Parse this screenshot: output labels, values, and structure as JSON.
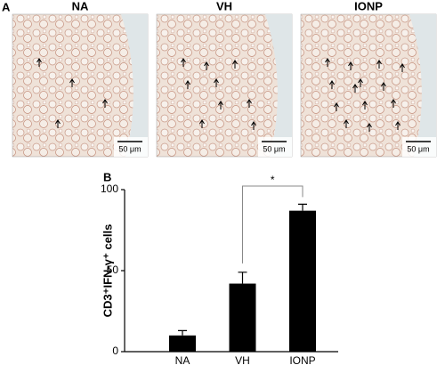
{
  "panel_a": {
    "label": "A",
    "images": [
      {
        "title": "NA",
        "scale_bar": "50 μm"
      },
      {
        "title": "VH",
        "scale_bar": "50 μm"
      },
      {
        "title": "IONP",
        "scale_bar": "50 μm"
      }
    ]
  },
  "chart_data": {
    "type": "bar",
    "panel_label": "B",
    "y_label": "CD3⁺IFN-γ⁺ cells",
    "categories": [
      "NA",
      "VH",
      "IONP"
    ],
    "values": [
      10,
      42,
      87
    ],
    "errors": [
      3,
      7,
      4
    ],
    "color": "#000000",
    "ylim": [
      0,
      100
    ],
    "yticks": [
      0,
      50,
      100
    ],
    "annotation": "*"
  }
}
